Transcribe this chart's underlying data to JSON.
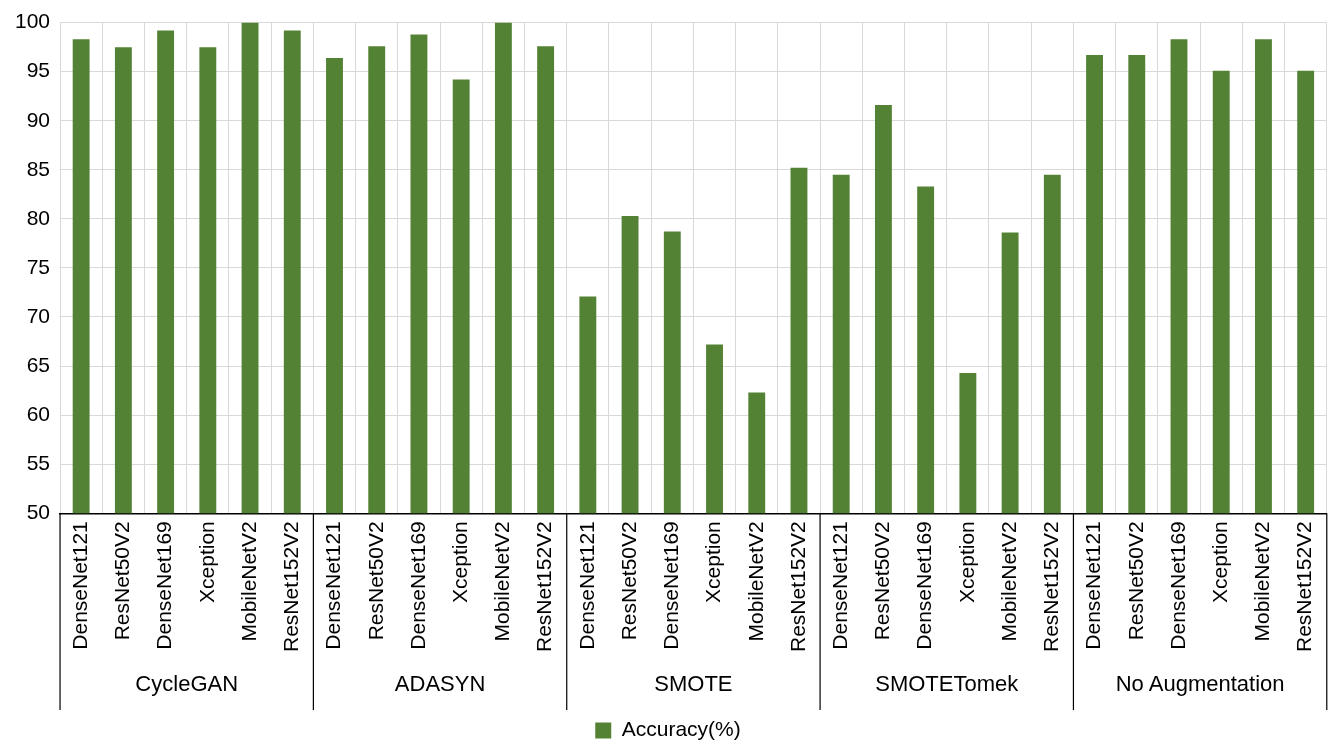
{
  "chart_data": {
    "type": "bar",
    "categories": [
      "DenseNet121",
      "ResNet50V2",
      "DenseNet169",
      "Xception",
      "MobileNetV2",
      "ResNet152V2",
      "DenseNet121",
      "ResNet50V2",
      "DenseNet169",
      "Xception",
      "MobileNetV2",
      "ResNet152V2",
      "DenseNet121",
      "ResNet50V2",
      "DenseNet169",
      "Xception",
      "MobileNetV2",
      "ResNet152V2",
      "DenseNet121",
      "ResNet50V2",
      "DenseNet169",
      "Xception",
      "MobileNetV2",
      "ResNet152V2",
      "DenseNet121",
      "ResNet50V2",
      "DenseNet169",
      "Xception",
      "MobileNetV2",
      "ResNet152V2"
    ],
    "series": [
      {
        "name": "Accuracy(%)",
        "color": "#548235",
        "values": [
          98.3,
          97.5,
          99.2,
          97.5,
          100,
          99.2,
          96.4,
          97.6,
          98.8,
          94.2,
          100,
          97.6,
          72.1,
          80.3,
          78.7,
          67.2,
          62.3,
          85.2,
          84.5,
          91.6,
          83.3,
          64.3,
          78.6,
          84.5,
          96.7,
          96.7,
          98.3,
          95.1,
          98.3,
          95.1
        ]
      }
    ],
    "annotations": [
      "CycleGAN",
      "ADASYN",
      "SMOTE",
      "SMOTETomek",
      "No Augmentation"
    ],
    "ylim": [
      50,
      100
    ],
    "yticks": [
      50,
      55,
      60,
      65,
      70,
      75,
      80,
      85,
      90,
      95,
      100
    ],
    "grid": true,
    "legend": "bottom"
  }
}
